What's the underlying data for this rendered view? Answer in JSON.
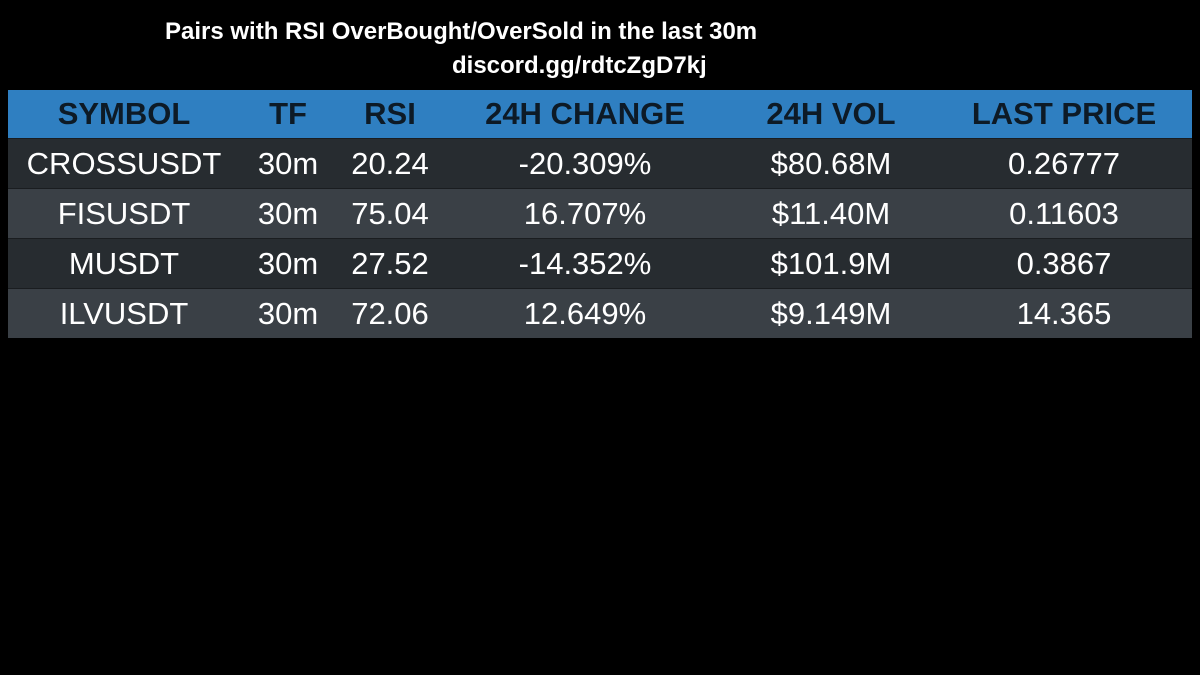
{
  "header": {
    "title": "Pairs with RSI OverBought/OverSold in the last 30m",
    "subtitle": "discord.gg/rdtcZgD7kj"
  },
  "table": {
    "columns": [
      "SYMBOL",
      "TF",
      "RSI",
      "24H CHANGE",
      "24H VOL",
      "LAST PRICE"
    ],
    "rows": [
      [
        "CROSSUSDT",
        "30m",
        "20.24",
        "-20.309%",
        "$80.68M",
        "0.26777"
      ],
      [
        "FISUSDT",
        "30m",
        "75.04",
        "16.707%",
        "$11.40M",
        "0.11603"
      ],
      [
        "MUSDT",
        "30m",
        "27.52",
        "-14.352%",
        "$101.9M",
        "0.3867"
      ],
      [
        "ILVUSDT",
        "30m",
        "72.06",
        "12.649%",
        "$9.149M",
        "14.365"
      ]
    ]
  }
}
